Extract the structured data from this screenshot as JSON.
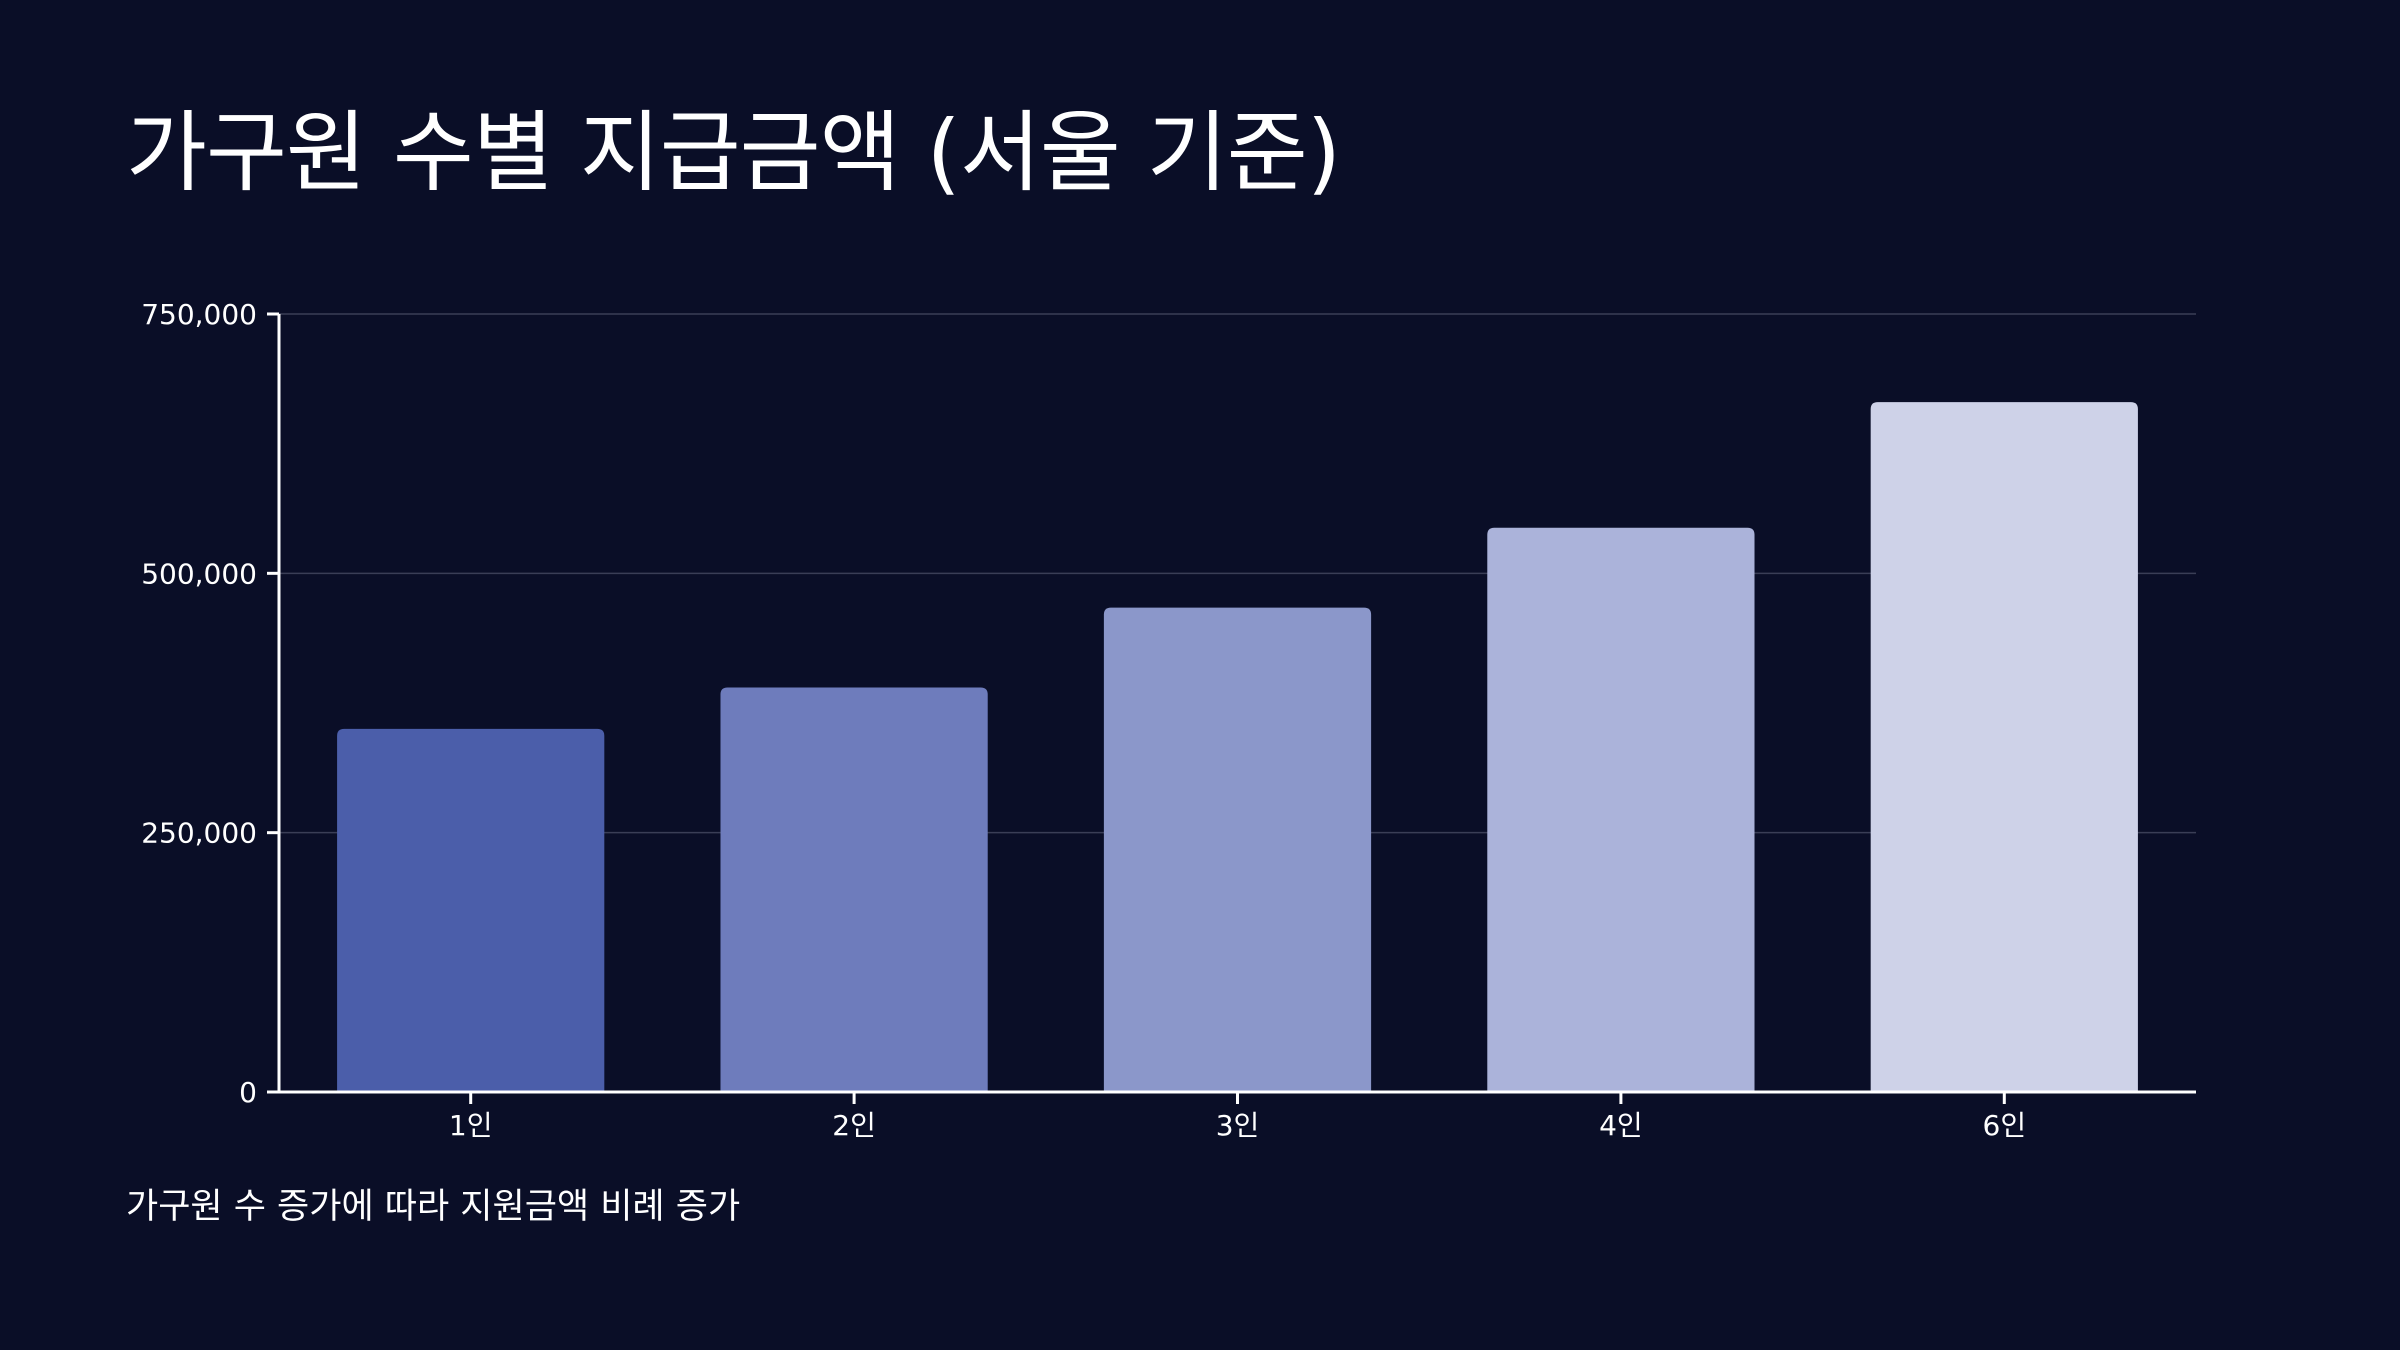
{
  "chart_data": {
    "type": "bar",
    "title": "가구원 수별 지급금액 (서울 기준)",
    "categories": [
      "1인",
      "2인",
      "3인",
      "4인",
      "6인"
    ],
    "values": [
      350000,
      390000,
      467000,
      544000,
      665000
    ],
    "xlabel": "",
    "ylabel": "",
    "ylim": [
      0,
      750000
    ],
    "yticks": [
      0,
      250000,
      500000,
      750000
    ],
    "ytick_labels": [
      "0",
      "250,000",
      "500,000",
      "750,000"
    ],
    "grid": true,
    "legend": "none",
    "bar_colors": [
      "#4b5eaa",
      "#6e7cbc",
      "#8b97ca",
      "#abb3da",
      "#ced2e8"
    ],
    "caption": "가구원 수 증가에 따라 지원금액 비례 증가"
  },
  "colors": {
    "background": "#0a0e27",
    "axis": "#ffffff",
    "grid": "#3a3e56",
    "text": "#ffffff"
  }
}
